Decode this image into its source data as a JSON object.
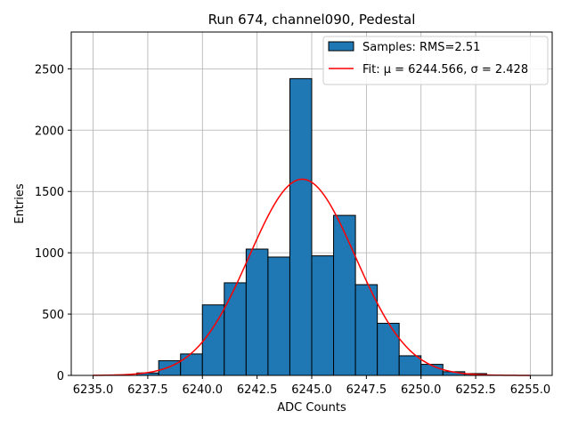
{
  "chart_data": {
    "type": "bar",
    "title": "Run 674, channel090, Pedestal",
    "xlabel": "ADC Counts",
    "ylabel": "Entries",
    "xlim": [
      6234.0,
      6256.0
    ],
    "ylim": [
      0,
      2800
    ],
    "xticks": [
      6235.0,
      6237.5,
      6240.0,
      6242.5,
      6245.0,
      6247.5,
      6250.0,
      6252.5,
      6255.0
    ],
    "xtick_labels": [
      "6235.0",
      "6237.5",
      "6240.0",
      "6242.5",
      "6245.0",
      "6247.5",
      "6250.0",
      "6252.5",
      "6255.0"
    ],
    "yticks": [
      0,
      500,
      1000,
      1500,
      2000,
      2500
    ],
    "ytick_labels": [
      "0",
      "500",
      "1000",
      "1500",
      "2000",
      "2500"
    ],
    "grid": true,
    "legend_position": "top-right",
    "bar_color": "#1f77b4",
    "bar_edge_color": "#000000",
    "fit_color": "#ff0000",
    "bins": [
      {
        "left": 6237,
        "right": 6238,
        "count": 20
      },
      {
        "left": 6238,
        "right": 6239,
        "count": 120
      },
      {
        "left": 6239,
        "right": 6240,
        "count": 175
      },
      {
        "left": 6240,
        "right": 6241,
        "count": 575
      },
      {
        "left": 6241,
        "right": 6242,
        "count": 755
      },
      {
        "left": 6242,
        "right": 6243,
        "count": 1030
      },
      {
        "left": 6243,
        "right": 6244,
        "count": 965
      },
      {
        "left": 6244,
        "right": 6245,
        "count": 2420
      },
      {
        "left": 6245,
        "right": 6246,
        "count": 975
      },
      {
        "left": 6246,
        "right": 6247,
        "count": 1305
      },
      {
        "left": 6247,
        "right": 6248,
        "count": 740
      },
      {
        "left": 6248,
        "right": 6249,
        "count": 425
      },
      {
        "left": 6249,
        "right": 6250,
        "count": 160
      },
      {
        "left": 6250,
        "right": 6251,
        "count": 90
      },
      {
        "left": 6251,
        "right": 6252,
        "count": 30
      },
      {
        "left": 6252,
        "right": 6253,
        "count": 15
      }
    ],
    "fit": {
      "mu": 6244.566,
      "sigma": 2.428,
      "peak": 1600,
      "x_range": [
        6235.0,
        6255.0
      ]
    },
    "legend": {
      "samples_label": "Samples: RMS=2.51",
      "fit_label": "Fit: μ = 6244.566, σ = 2.428"
    }
  }
}
